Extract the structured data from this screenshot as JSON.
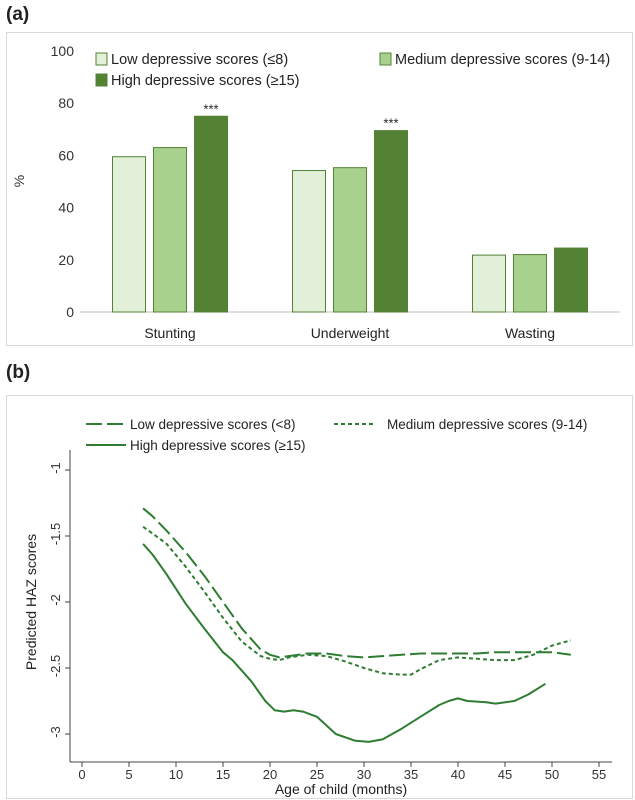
{
  "panel_a_label": "(a)",
  "panel_b_label": "(b)",
  "chart_data": [
    {
      "type": "bar",
      "ylabel": "%",
      "ylim": [
        0,
        100
      ],
      "yticks": [
        "0",
        "20",
        "40",
        "60",
        "80",
        "100"
      ],
      "categories": [
        "Stunting",
        "Underweight",
        "Wasting"
      ],
      "series": [
        {
          "name": "Low depressive scores (≤8)",
          "values": [
            59.5,
            54.2,
            21.8
          ],
          "color": "#e2f0d9"
        },
        {
          "name": "Medium depressive scores (9-14)",
          "values": [
            63,
            55.3,
            22
          ],
          "color": "#a9d18e"
        },
        {
          "name": "High depressive scores (≥15)",
          "values": [
            75,
            69.5,
            24.5
          ],
          "color": "#548235"
        }
      ],
      "annotations": [
        {
          "category": "Stunting",
          "series": 2,
          "text": "***"
        },
        {
          "category": "Underweight",
          "series": 2,
          "text": "***"
        }
      ],
      "legend_placement": "top",
      "grid": false
    },
    {
      "type": "line",
      "xlabel": "Age of child (months)",
      "ylabel": "Predicted HAZ scores",
      "xlim": [
        0,
        55
      ],
      "ylim": [
        -3.1,
        -1
      ],
      "xticks": [
        "0",
        "5",
        "10",
        "15",
        "20",
        "25",
        "30",
        "35",
        "40",
        "45",
        "50",
        "55"
      ],
      "yticks": [
        "-1",
        "-1.5",
        "-2",
        "-2.5",
        "-3"
      ],
      "legend_placement": "top",
      "grid": false,
      "color": "#2e7d32",
      "series": [
        {
          "name": "Low depressive scores (<8)",
          "style": "dashed",
          "x": [
            6.5,
            7.5,
            9,
            11,
            13,
            15,
            17,
            19,
            20,
            21,
            22,
            24,
            26,
            28,
            30,
            32,
            34,
            36,
            38,
            40,
            42,
            44,
            46,
            48,
            50,
            52
          ],
          "y": [
            -1.29,
            -1.35,
            -1.46,
            -1.62,
            -1.8,
            -2.0,
            -2.2,
            -2.36,
            -2.4,
            -2.42,
            -2.41,
            -2.39,
            -2.39,
            -2.41,
            -2.42,
            -2.41,
            -2.4,
            -2.39,
            -2.39,
            -2.39,
            -2.39,
            -2.38,
            -2.38,
            -2.38,
            -2.38,
            -2.4
          ]
        },
        {
          "name": "Medium depressive scores (9-14)",
          "style": "dotted",
          "x": [
            6.5,
            7.5,
            9,
            11,
            13,
            15,
            17,
            19,
            20,
            21,
            22,
            24,
            26,
            28,
            30,
            32,
            34,
            35,
            36,
            38,
            40,
            42,
            44,
            46,
            48,
            50,
            52
          ],
          "y": [
            -1.43,
            -1.48,
            -1.56,
            -1.73,
            -1.92,
            -2.12,
            -2.3,
            -2.41,
            -2.43,
            -2.44,
            -2.42,
            -2.4,
            -2.41,
            -2.45,
            -2.5,
            -2.54,
            -2.55,
            -2.55,
            -2.51,
            -2.44,
            -2.42,
            -2.43,
            -2.44,
            -2.44,
            -2.4,
            -2.33,
            -2.29
          ]
        },
        {
          "name": "High depressive scores (≥15)",
          "style": "solid",
          "x": [
            6.5,
            7.5,
            9,
            11,
            13,
            15,
            16,
            18,
            19.5,
            20.5,
            21.5,
            22.5,
            23.5,
            25,
            27,
            29,
            30.5,
            32,
            34,
            36,
            38,
            39,
            40,
            41,
            43,
            44,
            46,
            47.5,
            49.3
          ],
          "y": [
            -1.56,
            -1.64,
            -1.79,
            -2.01,
            -2.2,
            -2.38,
            -2.44,
            -2.6,
            -2.75,
            -2.82,
            -2.83,
            -2.82,
            -2.83,
            -2.87,
            -3.0,
            -3.05,
            -3.06,
            -3.04,
            -2.96,
            -2.87,
            -2.78,
            -2.75,
            -2.73,
            -2.75,
            -2.76,
            -2.77,
            -2.75,
            -2.7,
            -2.62
          ]
        }
      ]
    }
  ]
}
